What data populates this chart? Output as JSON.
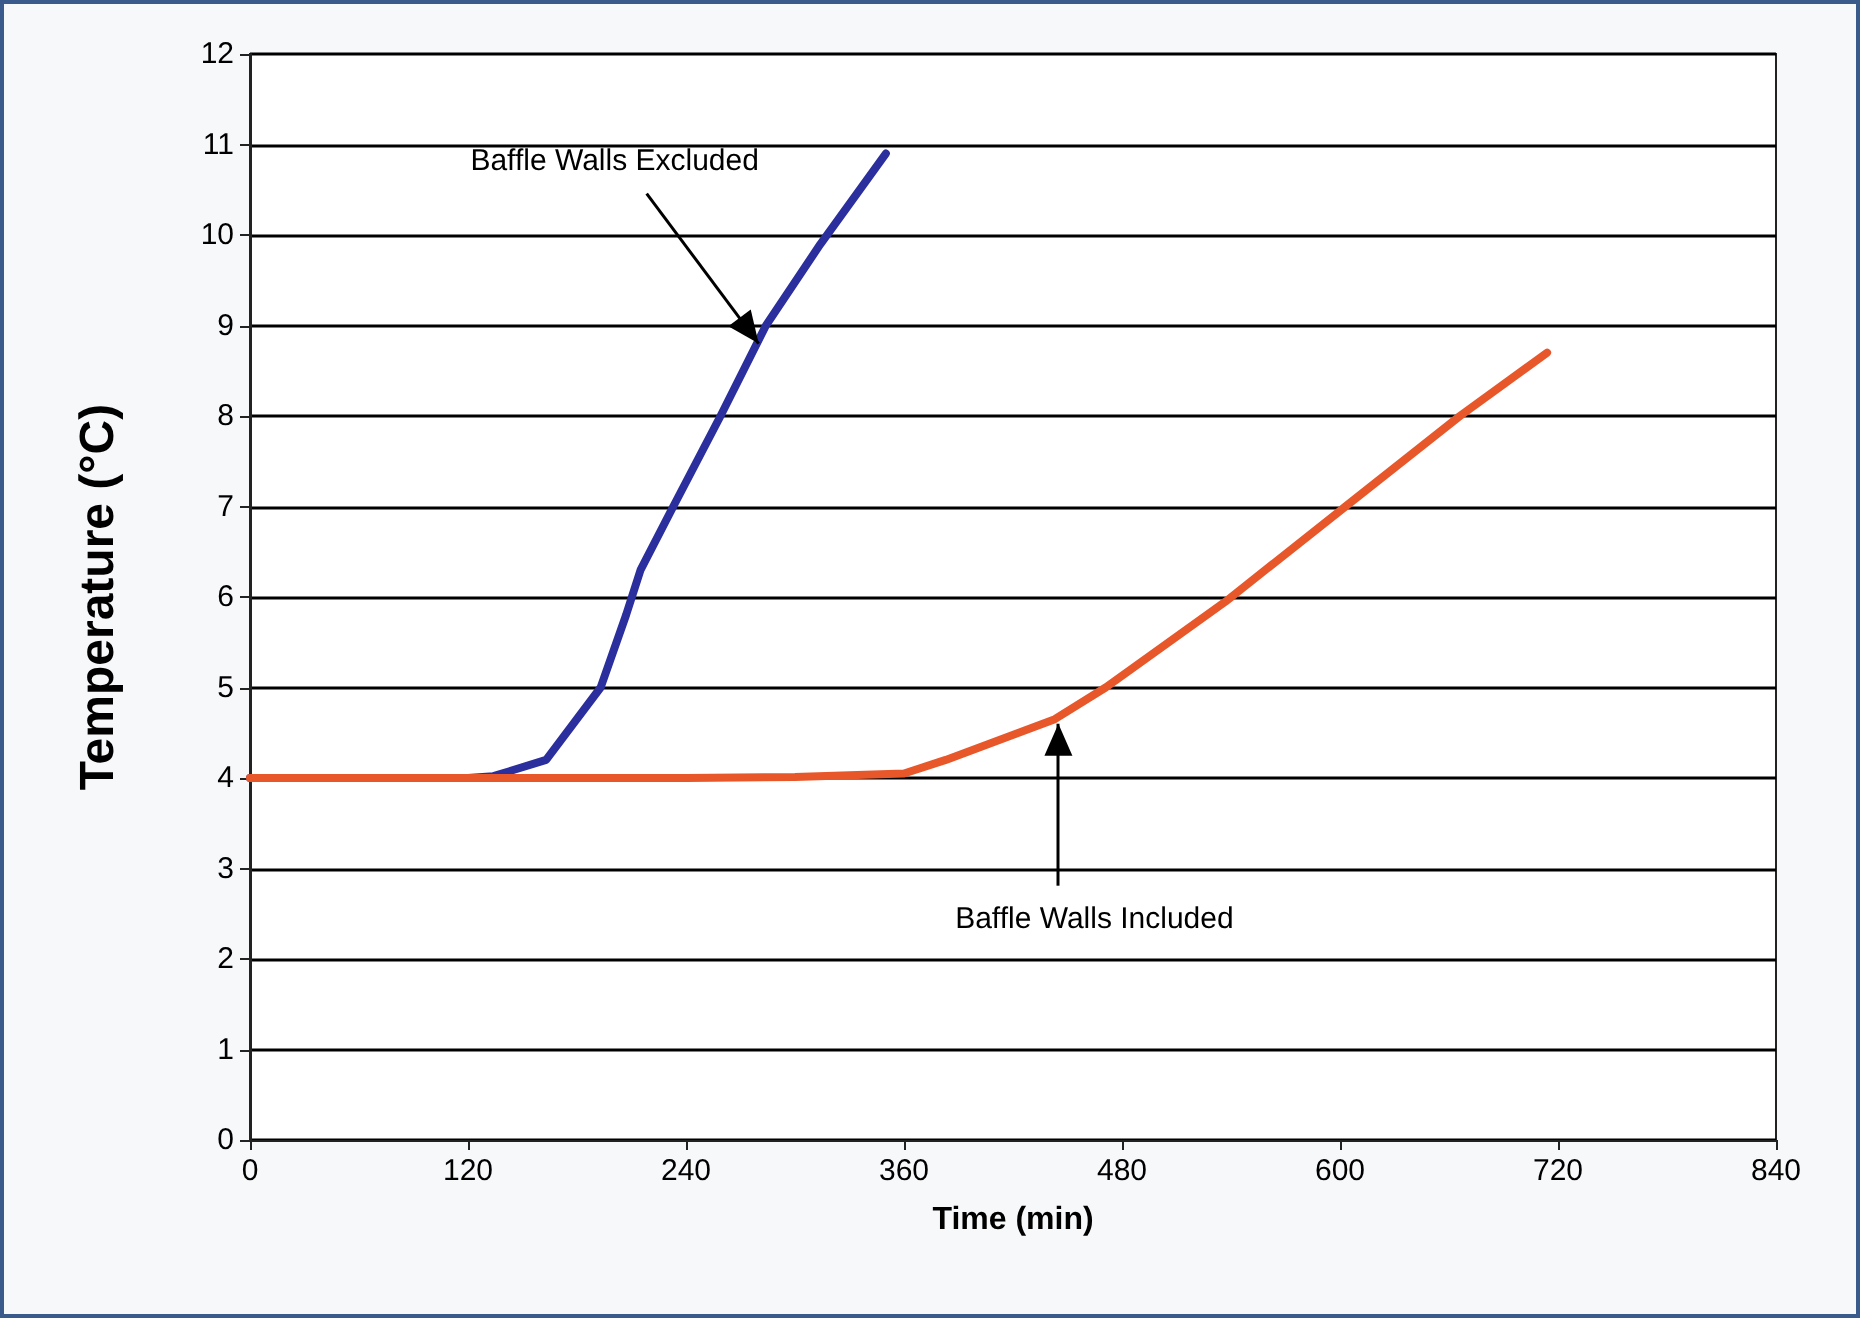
{
  "chart_data": {
    "type": "line",
    "xlabel": "Time (min)",
    "ylabel": "Temperature (°C)",
    "xlim": [
      0,
      840
    ],
    "xticks": [
      0,
      120,
      240,
      360,
      480,
      600,
      720,
      840
    ],
    "ylim": [
      0,
      12
    ],
    "yticks": [
      0,
      1,
      2,
      3,
      4,
      5,
      6,
      7,
      8,
      9,
      10,
      11,
      12
    ],
    "grid": "y",
    "marker": "none",
    "line_style": "solid",
    "series": [
      {
        "color": "#2b2f9e",
        "x": [
          0,
          60,
          120,
          134,
          163,
          193,
          207,
          215,
          233,
          259,
          284,
          314,
          350
        ],
        "values": [
          4,
          4,
          4,
          4.02,
          4.2,
          5.0,
          5.8,
          6.3,
          7.0,
          8.0,
          9.0,
          9.9,
          10.9
        ]
      },
      {
        "color": "#e8572a",
        "x": [
          0,
          120,
          240,
          300,
          360,
          383,
          443,
          471,
          537,
          603,
          666,
          714
        ],
        "values": [
          4,
          4,
          4,
          4.01,
          4.05,
          4.2,
          4.65,
          5.0,
          5.95,
          7.0,
          8.0,
          8.7
        ]
      }
    ],
    "annotations": [
      {
        "text": "Baffle Walls Excluded",
        "x": 280,
        "y": 8.8
      },
      {
        "text": "Baffle Walls Included",
        "x": 445,
        "y": 4.6
      }
    ]
  }
}
